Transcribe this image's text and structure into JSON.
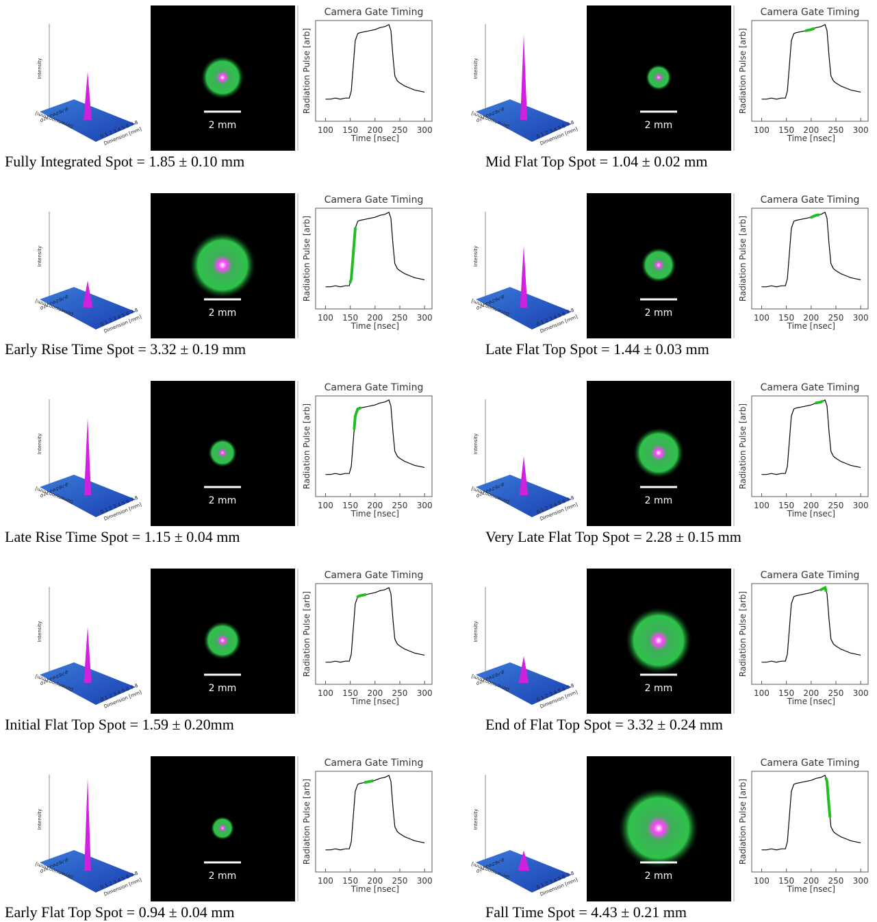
{
  "panels": [
    {
      "caption": "Fully Integrated Spot = 1.85 ± 0.10 mm",
      "spot_mm": 1.85
    },
    {
      "caption": "Mid Flat Top Spot = 1.04 ± 0.02 mm",
      "spot_mm": 1.04
    },
    {
      "caption": "Early Rise Time Spot = 3.32 ± 0.19 mm",
      "spot_mm": 3.32
    },
    {
      "caption": "Late Flat Top Spot = 1.44 ± 0.03 mm",
      "spot_mm": 1.44
    },
    {
      "caption": "Late Rise Time Spot = 1.15 ± 0.04 mm",
      "spot_mm": 1.15
    },
    {
      "caption": "Very Late Flat Top Spot = 2.28 ± 0.15 mm",
      "spot_mm": 2.28
    },
    {
      "caption": "Initial Flat Top Spot = 1.59 ± 0.20mm",
      "spot_mm": 1.59
    },
    {
      "caption": "End of Flat Top Spot = 3.32 ± 0.24 mm",
      "spot_mm": 3.32
    },
    {
      "caption": "Early Flat Top Spot = 0.94 ± 0.04 mm",
      "spot_mm": 0.94
    },
    {
      "caption": "Fall Time Spot = 4.43 ± 0.21 mm",
      "spot_mm": 4.43
    }
  ],
  "surface": {
    "z_label": "Intensity",
    "dimension_label": "Dimension [mm]",
    "ticks": [
      0,
      1,
      2,
      3,
      4,
      5,
      6,
      7,
      8
    ]
  },
  "scale_label": "2 mm",
  "chart_data": [
    {
      "type": "line",
      "title": "Camera Gate Timing",
      "x_label": "Time [nsec]",
      "y_label": "Radiation Pulse [arb]",
      "color": "#000000",
      "xlim": [
        80,
        315
      ],
      "xticks": [
        100,
        150,
        200,
        250,
        300
      ],
      "ylim": [
        0,
        1
      ],
      "x": [
        100,
        110,
        120,
        130,
        140,
        148,
        152,
        156,
        160,
        165,
        170,
        180,
        190,
        200,
        210,
        220,
        228,
        232,
        236,
        240,
        245,
        250,
        260,
        270,
        280,
        290,
        300
      ],
      "values": [
        0.22,
        0.22,
        0.23,
        0.22,
        0.23,
        0.23,
        0.3,
        0.55,
        0.8,
        0.87,
        0.88,
        0.89,
        0.9,
        0.91,
        0.93,
        0.94,
        0.96,
        0.9,
        0.65,
        0.45,
        0.4,
        0.38,
        0.35,
        0.33,
        0.31,
        0.3,
        0.29
      ]
    },
    {
      "type": "line",
      "title": "Camera Gate Timing",
      "x_label": "Time [nsec]",
      "y_label": "Radiation Pulse [arb]",
      "color": "#000000",
      "xlim": [
        80,
        315
      ],
      "xticks": [
        100,
        150,
        200,
        250,
        300
      ],
      "ylim": [
        0,
        1
      ],
      "highlight": [
        190,
        205
      ],
      "highlight_color": "#22bb22",
      "x": [
        100,
        110,
        120,
        130,
        140,
        148,
        152,
        156,
        160,
        165,
        170,
        180,
        190,
        200,
        210,
        220,
        228,
        232,
        236,
        240,
        245,
        250,
        260,
        270,
        280,
        290,
        300
      ],
      "values": [
        0.22,
        0.22,
        0.23,
        0.22,
        0.23,
        0.23,
        0.3,
        0.55,
        0.8,
        0.87,
        0.88,
        0.89,
        0.9,
        0.91,
        0.93,
        0.94,
        0.96,
        0.9,
        0.65,
        0.45,
        0.4,
        0.38,
        0.35,
        0.33,
        0.31,
        0.3,
        0.29
      ]
    },
    {
      "type": "line",
      "title": "Camera Gate Timing",
      "x_label": "Time [nsec]",
      "y_label": "Radiation Pulse [arb]",
      "color": "#000000",
      "xlim": [
        80,
        315
      ],
      "xticks": [
        100,
        150,
        200,
        250,
        300
      ],
      "ylim": [
        0,
        1
      ],
      "highlight": [
        150,
        160
      ],
      "highlight_color": "#22bb22",
      "x": [
        100,
        110,
        120,
        130,
        140,
        148,
        152,
        156,
        160,
        165,
        170,
        180,
        190,
        200,
        210,
        220,
        228,
        232,
        236,
        240,
        245,
        250,
        260,
        270,
        280,
        290,
        300
      ],
      "values": [
        0.22,
        0.22,
        0.23,
        0.22,
        0.23,
        0.23,
        0.3,
        0.55,
        0.8,
        0.87,
        0.88,
        0.89,
        0.9,
        0.91,
        0.93,
        0.94,
        0.96,
        0.9,
        0.65,
        0.45,
        0.4,
        0.38,
        0.35,
        0.33,
        0.31,
        0.3,
        0.29
      ]
    },
    {
      "type": "line",
      "title": "Camera Gate Timing",
      "x_label": "Time [nsec]",
      "y_label": "Radiation Pulse [arb]",
      "color": "#000000",
      "xlim": [
        80,
        315
      ],
      "xticks": [
        100,
        150,
        200,
        250,
        300
      ],
      "ylim": [
        0,
        1
      ],
      "highlight": [
        200,
        215
      ],
      "highlight_color": "#22bb22",
      "x": [
        100,
        110,
        120,
        130,
        140,
        148,
        152,
        156,
        160,
        165,
        170,
        180,
        190,
        200,
        210,
        220,
        228,
        232,
        236,
        240,
        245,
        250,
        260,
        270,
        280,
        290,
        300
      ],
      "values": [
        0.22,
        0.22,
        0.23,
        0.22,
        0.23,
        0.23,
        0.3,
        0.55,
        0.8,
        0.87,
        0.88,
        0.89,
        0.9,
        0.91,
        0.93,
        0.94,
        0.96,
        0.9,
        0.65,
        0.45,
        0.4,
        0.38,
        0.35,
        0.33,
        0.31,
        0.3,
        0.29
      ]
    },
    {
      "type": "line",
      "title": "Camera Gate Timing",
      "x_label": "Time [nsec]",
      "y_label": "Radiation Pulse [arb]",
      "color": "#000000",
      "xlim": [
        80,
        315
      ],
      "xticks": [
        100,
        150,
        200,
        250,
        300
      ],
      "ylim": [
        0,
        1
      ],
      "highlight": [
        158,
        170
      ],
      "highlight_color": "#22bb22",
      "x": [
        100,
        110,
        120,
        130,
        140,
        148,
        152,
        156,
        160,
        165,
        170,
        180,
        190,
        200,
        210,
        220,
        228,
        232,
        236,
        240,
        245,
        250,
        260,
        270,
        280,
        290,
        300
      ],
      "values": [
        0.22,
        0.22,
        0.23,
        0.22,
        0.23,
        0.23,
        0.3,
        0.55,
        0.8,
        0.87,
        0.88,
        0.89,
        0.9,
        0.91,
        0.93,
        0.94,
        0.96,
        0.9,
        0.65,
        0.45,
        0.4,
        0.38,
        0.35,
        0.33,
        0.31,
        0.3,
        0.29
      ]
    },
    {
      "type": "line",
      "title": "Camera Gate Timing",
      "x_label": "Time [nsec]",
      "y_label": "Radiation Pulse [arb]",
      "color": "#000000",
      "xlim": [
        80,
        315
      ],
      "xticks": [
        100,
        150,
        200,
        250,
        300
      ],
      "ylim": [
        0,
        1
      ],
      "highlight": [
        210,
        222
      ],
      "highlight_color": "#22bb22",
      "x": [
        100,
        110,
        120,
        130,
        140,
        148,
        152,
        156,
        160,
        165,
        170,
        180,
        190,
        200,
        210,
        220,
        228,
        232,
        236,
        240,
        245,
        250,
        260,
        270,
        280,
        290,
        300
      ],
      "values": [
        0.22,
        0.22,
        0.23,
        0.22,
        0.23,
        0.23,
        0.3,
        0.55,
        0.8,
        0.87,
        0.88,
        0.89,
        0.9,
        0.91,
        0.93,
        0.94,
        0.96,
        0.9,
        0.65,
        0.45,
        0.4,
        0.38,
        0.35,
        0.33,
        0.31,
        0.3,
        0.29
      ]
    },
    {
      "type": "line",
      "title": "Camera Gate Timing",
      "x_label": "Time [nsec]",
      "y_label": "Radiation Pulse [arb]",
      "color": "#000000",
      "xlim": [
        80,
        315
      ],
      "xticks": [
        100,
        150,
        200,
        250,
        300
      ],
      "ylim": [
        0,
        1
      ],
      "highlight": [
        165,
        180
      ],
      "highlight_color": "#22bb22",
      "x": [
        100,
        110,
        120,
        130,
        140,
        148,
        152,
        156,
        160,
        165,
        170,
        180,
        190,
        200,
        210,
        220,
        228,
        232,
        236,
        240,
        245,
        250,
        260,
        270,
        280,
        290,
        300
      ],
      "values": [
        0.22,
        0.22,
        0.23,
        0.22,
        0.23,
        0.23,
        0.3,
        0.55,
        0.8,
        0.87,
        0.88,
        0.89,
        0.9,
        0.91,
        0.93,
        0.94,
        0.96,
        0.9,
        0.65,
        0.45,
        0.4,
        0.38,
        0.35,
        0.33,
        0.31,
        0.3,
        0.29
      ]
    },
    {
      "type": "line",
      "title": "Camera Gate Timing",
      "x_label": "Time [nsec]",
      "y_label": "Radiation Pulse [arb]",
      "color": "#000000",
      "xlim": [
        80,
        315
      ],
      "xticks": [
        100,
        150,
        200,
        250,
        300
      ],
      "ylim": [
        0,
        1
      ],
      "highlight": [
        220,
        230
      ],
      "highlight_color": "#22bb22",
      "x": [
        100,
        110,
        120,
        130,
        140,
        148,
        152,
        156,
        160,
        165,
        170,
        180,
        190,
        200,
        210,
        220,
        228,
        232,
        236,
        240,
        245,
        250,
        260,
        270,
        280,
        290,
        300
      ],
      "values": [
        0.22,
        0.22,
        0.23,
        0.22,
        0.23,
        0.23,
        0.3,
        0.55,
        0.8,
        0.87,
        0.88,
        0.89,
        0.9,
        0.91,
        0.93,
        0.94,
        0.96,
        0.9,
        0.65,
        0.45,
        0.4,
        0.38,
        0.35,
        0.33,
        0.31,
        0.3,
        0.29
      ]
    },
    {
      "type": "line",
      "title": "Camera Gate Timing",
      "x_label": "Time [nsec]",
      "y_label": "Radiation Pulse [arb]",
      "color": "#000000",
      "xlim": [
        80,
        315
      ],
      "xticks": [
        100,
        150,
        200,
        250,
        300
      ],
      "ylim": [
        0,
        1
      ],
      "highlight": [
        180,
        195
      ],
      "highlight_color": "#22bb22",
      "x": [
        100,
        110,
        120,
        130,
        140,
        148,
        152,
        156,
        160,
        165,
        170,
        180,
        190,
        200,
        210,
        220,
        228,
        232,
        236,
        240,
        245,
        250,
        260,
        270,
        280,
        290,
        300
      ],
      "values": [
        0.22,
        0.22,
        0.23,
        0.22,
        0.23,
        0.23,
        0.3,
        0.55,
        0.8,
        0.87,
        0.88,
        0.89,
        0.9,
        0.91,
        0.93,
        0.94,
        0.96,
        0.9,
        0.65,
        0.45,
        0.4,
        0.38,
        0.35,
        0.33,
        0.31,
        0.3,
        0.29
      ]
    },
    {
      "type": "line",
      "title": "Camera Gate Timing",
      "x_label": "Time [nsec]",
      "y_label": "Radiation Pulse [arb]",
      "color": "#000000",
      "xlim": [
        80,
        315
      ],
      "xticks": [
        100,
        150,
        200,
        250,
        300
      ],
      "ylim": [
        0,
        1
      ],
      "highlight": [
        230,
        238
      ],
      "highlight_color": "#22bb22",
      "x": [
        100,
        110,
        120,
        130,
        140,
        148,
        152,
        156,
        160,
        165,
        170,
        180,
        190,
        200,
        210,
        220,
        228,
        232,
        236,
        240,
        245,
        250,
        260,
        270,
        280,
        290,
        300
      ],
      "values": [
        0.22,
        0.22,
        0.23,
        0.22,
        0.23,
        0.23,
        0.3,
        0.55,
        0.8,
        0.87,
        0.88,
        0.89,
        0.9,
        0.91,
        0.93,
        0.94,
        0.96,
        0.9,
        0.65,
        0.45,
        0.4,
        0.38,
        0.35,
        0.33,
        0.31,
        0.3,
        0.29
      ]
    }
  ]
}
